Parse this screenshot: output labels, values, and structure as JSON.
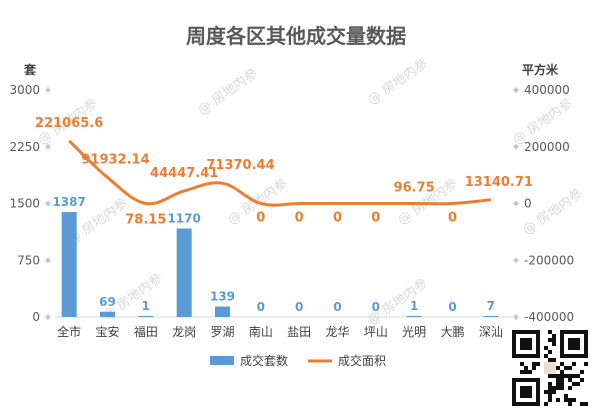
{
  "chart_data": {
    "type": "bar",
    "title": "周度各区其他成交量数据",
    "categories": [
      "全市",
      "宝安",
      "福田",
      "龙岗",
      "罗湖",
      "南山",
      "盐田",
      "龙华",
      "坪山",
      "光明",
      "大鹏",
      "深汕"
    ],
    "series": [
      {
        "name": "成交套数",
        "type": "bar",
        "axis": "left",
        "color": "#5b9bd5",
        "values": [
          1387,
          69,
          1,
          1170,
          139,
          0,
          0,
          0,
          0,
          1,
          0,
          7
        ],
        "labels": [
          "1387",
          "69",
          "1",
          "1170",
          "139",
          "0",
          "0",
          "0",
          "0",
          "1",
          "0",
          "7"
        ]
      },
      {
        "name": "成交面积",
        "type": "line",
        "axis": "right",
        "color": "#ed7d31",
        "values": [
          221065.6,
          91932.14,
          78.15,
          44447.41,
          71370.44,
          0,
          0,
          0,
          0,
          96.75,
          0,
          13140.71
        ],
        "labels": [
          "221065.6",
          "91932.14",
          "78.15",
          "44447.41",
          "71370.44",
          "0",
          "0",
          "0",
          "0",
          "96.75",
          "0",
          "13140.71"
        ]
      }
    ],
    "y_left": {
      "unit": "套",
      "min": 0,
      "max": 3000,
      "ticks": [
        "0",
        "750",
        "1500",
        "2250",
        "3000"
      ],
      "tick_values": [
        0,
        750,
        1500,
        2250,
        3000
      ]
    },
    "y_right": {
      "unit": "平方米",
      "min": -400000,
      "max": 400000,
      "ticks": [
        "-400000",
        "-200000",
        "0",
        "200000",
        "400000"
      ],
      "tick_values": [
        -400000,
        -200000,
        0,
        200000,
        400000
      ]
    },
    "grid": false,
    "legend_position": "bottom"
  },
  "watermark": "房地内参"
}
